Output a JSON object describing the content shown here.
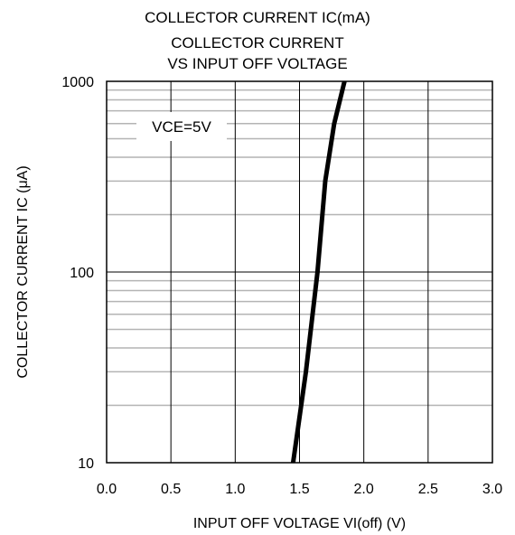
{
  "chart_data": {
    "type": "line",
    "header": "COLLECTOR CURRENT  IC(mA)",
    "title_line1": "COLLECTOR CURRENT",
    "title_line2": "VS INPUT OFF VOLTAGE",
    "xlabel": "INPUT OFF VOLTAGE VI(off) (V)",
    "ylabel": "COLLECTOR CURRENT IC (μA)",
    "xlim": [
      0.0,
      3.0
    ],
    "ylim": [
      10,
      1000
    ],
    "yscale": "log",
    "grid": true,
    "x_ticks": [
      "0.0",
      "0.5",
      "1.0",
      "1.5",
      "2.0",
      "2.5",
      "3.0"
    ],
    "y_ticks": [
      "10",
      "100",
      "1000"
    ],
    "annotation": "VCE=5V",
    "series": [
      {
        "x": [
          1.45,
          1.55,
          1.64,
          1.7,
          1.77,
          1.85
        ],
        "y": [
          10,
          30,
          100,
          300,
          600,
          1000
        ]
      }
    ]
  }
}
